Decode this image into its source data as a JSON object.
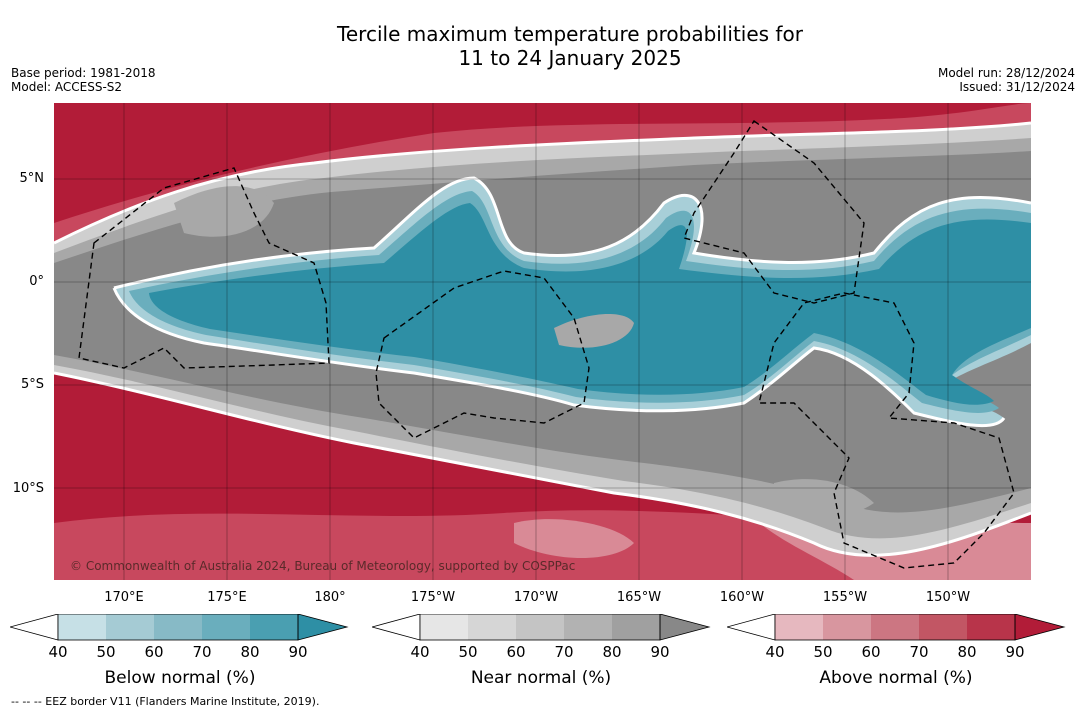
{
  "title": {
    "line1": "Tercile maximum temperature probabilities for",
    "line2": "11 to 24 January 2025"
  },
  "meta_left": {
    "base_period": "Base period: 1981-2018",
    "model": "Model: ACCESS-S2"
  },
  "meta_right": {
    "model_run": "Model run: 28/12/2024",
    "issued": "Issued: 31/12/2024"
  },
  "map": {
    "lat_labels": [
      "5°N",
      "0°",
      "5°S",
      "10°S"
    ],
    "lon_labels": [
      "170°E",
      "175°E",
      "180°",
      "175°W",
      "170°W",
      "165°W",
      "160°W",
      "155°W",
      "150°W"
    ],
    "copyright": "© Commonwealth of Australia 2024, Bureau of Meteorology, supported by COSPPac",
    "colors": {
      "above_strong": "#b21c38",
      "above_mid": "#c8485e",
      "above_light": "#d98a96",
      "near_dark": "#888888",
      "near_mid": "#a8a8a8",
      "near_light": "#cfcfcf",
      "below_strong": "#2e8fa5",
      "below_mid": "#6aaebd",
      "below_light": "#a8cfd8",
      "eez_border": "#000000"
    }
  },
  "colorbars": [
    {
      "label": "Below normal (%)",
      "ticks": [
        "40",
        "50",
        "60",
        "70",
        "80",
        "90"
      ],
      "colors": [
        "#c6e0e6",
        "#a5cbd4",
        "#87bac6",
        "#6aaebd",
        "#4a9fb1",
        "#2e8fa5"
      ]
    },
    {
      "label": "Near normal (%)",
      "ticks": [
        "40",
        "50",
        "60",
        "70",
        "80",
        "90"
      ],
      "colors": [
        "#e6e6e6",
        "#d6d6d6",
        "#c4c4c4",
        "#b2b2b2",
        "#a0a0a0",
        "#888888"
      ]
    },
    {
      "label": "Above normal (%)",
      "ticks": [
        "40",
        "50",
        "60",
        "70",
        "80",
        "90"
      ],
      "colors": [
        "#e6b8bf",
        "#d8969f",
        "#cc7682",
        "#c25664",
        "#b8344a",
        "#b21c38"
      ]
    }
  ],
  "footer": "--  --  -- EEZ border V11 (Flanders Marine Institute, 2019)."
}
